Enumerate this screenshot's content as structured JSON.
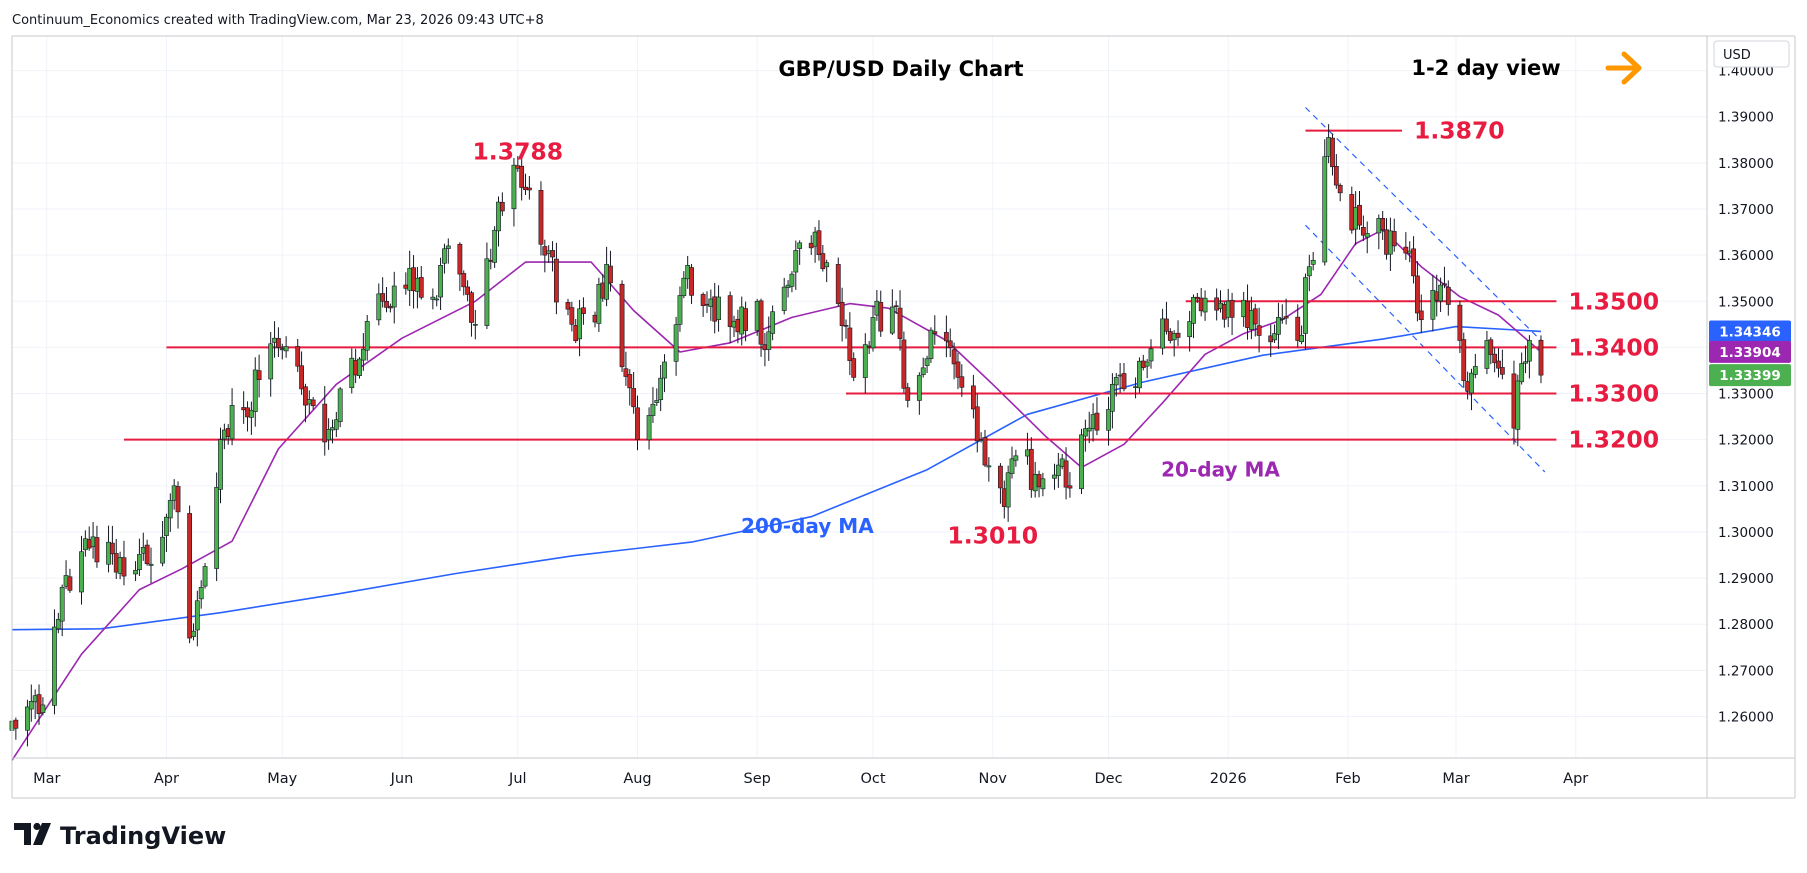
{
  "header": {
    "credit": "Continuum_Economics created with TradingView.com, Mar 23, 2026 09:43 UTC+8"
  },
  "logo": {
    "text": "TradingView"
  },
  "chart_data": {
    "type": "candlestick",
    "title": "GBP/USD Daily Chart",
    "view_label": "1-2 day view",
    "currency": "USD",
    "ylim": [
      1.251,
      1.4075
    ],
    "y_ticks": [
      "1.26000",
      "1.27000",
      "1.28000",
      "1.29000",
      "1.30000",
      "1.31000",
      "1.32000",
      "1.33000",
      "1.34000",
      "1.35000",
      "1.36000",
      "1.37000",
      "1.38000",
      "1.39000",
      "1.40000"
    ],
    "months": [
      {
        "label": "Mar",
        "date": "2025-03-01"
      },
      {
        "label": "Apr",
        "date": "2025-04-01"
      },
      {
        "label": "May",
        "date": "2025-05-01"
      },
      {
        "label": "Jun",
        "date": "2025-06-01"
      },
      {
        "label": "Jul",
        "date": "2025-07-01"
      },
      {
        "label": "Aug",
        "date": "2025-08-01"
      },
      {
        "label": "Sep",
        "date": "2025-09-01"
      },
      {
        "label": "Oct",
        "date": "2025-10-01"
      },
      {
        "label": "Nov",
        "date": "2025-11-01"
      },
      {
        "label": "Dec",
        "date": "2025-12-01"
      },
      {
        "label": "2026",
        "date": "2026-01-01"
      },
      {
        "label": "Feb",
        "date": "2026-02-01"
      },
      {
        "label": "Mar",
        "date": "2026-03-01"
      },
      {
        "label": "Apr",
        "date": "2026-04-01"
      }
    ],
    "key_prices": [
      {
        "date": "2025-02-20",
        "price": 1.259
      },
      {
        "date": "2025-02-28",
        "price": 1.2625
      },
      {
        "date": "2025-03-05",
        "price": 1.288
      },
      {
        "date": "2025-03-12",
        "price": 1.2965
      },
      {
        "date": "2025-03-20",
        "price": 1.2945
      },
      {
        "date": "2025-03-28",
        "price": 1.293
      },
      {
        "date": "2025-04-03",
        "price": 1.31
      },
      {
        "date": "2025-04-07",
        "price": 1.277
      },
      {
        "date": "2025-04-10",
        "price": 1.288
      },
      {
        "date": "2025-04-15",
        "price": 1.32
      },
      {
        "date": "2025-04-25",
        "price": 1.333
      },
      {
        "date": "2025-04-29",
        "price": 1.342
      },
      {
        "date": "2025-05-06",
        "price": 1.331
      },
      {
        "date": "2025-05-12",
        "price": 1.3195
      },
      {
        "date": "2025-05-16",
        "price": 1.331
      },
      {
        "date": "2025-05-27",
        "price": 1.35
      },
      {
        "date": "2025-06-05",
        "price": 1.355
      },
      {
        "date": "2025-06-10",
        "price": 1.3505
      },
      {
        "date": "2025-06-13",
        "price": 1.362
      },
      {
        "date": "2025-06-20",
        "price": 1.345
      },
      {
        "date": "2025-06-26",
        "price": 1.3715
      },
      {
        "date": "2025-07-01",
        "price": 1.3788
      },
      {
        "date": "2025-07-08",
        "price": 1.36
      },
      {
        "date": "2025-07-15",
        "price": 1.345
      },
      {
        "date": "2025-07-21",
        "price": 1.3455
      },
      {
        "date": "2025-07-24",
        "price": 1.358
      },
      {
        "date": "2025-08-01",
        "price": 1.32
      },
      {
        "date": "2025-08-06",
        "price": 1.3285
      },
      {
        "date": "2025-08-13",
        "price": 1.355
      },
      {
        "date": "2025-08-20",
        "price": 1.3505
      },
      {
        "date": "2025-08-25",
        "price": 1.3445
      },
      {
        "date": "2025-09-01",
        "price": 1.35
      },
      {
        "date": "2025-09-03",
        "price": 1.3395
      },
      {
        "date": "2025-09-09",
        "price": 1.3535
      },
      {
        "date": "2025-09-16",
        "price": 1.365
      },
      {
        "date": "2025-09-22",
        "price": 1.3495
      },
      {
        "date": "2025-09-26",
        "price": 1.3335
      },
      {
        "date": "2025-10-01",
        "price": 1.3465
      },
      {
        "date": "2025-10-07",
        "price": 1.349
      },
      {
        "date": "2025-10-10",
        "price": 1.3285
      },
      {
        "date": "2025-10-17",
        "price": 1.343
      },
      {
        "date": "2025-10-23",
        "price": 1.3335
      },
      {
        "date": "2025-10-30",
        "price": 1.3145
      },
      {
        "date": "2025-11-04",
        "price": 1.3055
      },
      {
        "date": "2025-11-07",
        "price": 1.3165
      },
      {
        "date": "2025-11-12",
        "price": 1.3125
      },
      {
        "date": "2025-11-18",
        "price": 1.3145
      },
      {
        "date": "2025-11-21",
        "price": 1.3095
      },
      {
        "date": "2025-11-26",
        "price": 1.3225
      },
      {
        "date": "2025-12-03",
        "price": 1.3335
      },
      {
        "date": "2025-12-08",
        "price": 1.3315
      },
      {
        "date": "2025-12-16",
        "price": 1.3435
      },
      {
        "date": "2025-12-24",
        "price": 1.3505
      },
      {
        "date": "2026-01-02",
        "price": 1.3465
      },
      {
        "date": "2026-01-07",
        "price": 1.348
      },
      {
        "date": "2026-01-13",
        "price": 1.343
      },
      {
        "date": "2026-01-19",
        "price": 1.3415
      },
      {
        "date": "2026-01-22",
        "price": 1.3575
      },
      {
        "date": "2026-01-27",
        "price": 1.3855
      },
      {
        "date": "2026-01-30",
        "price": 1.3735
      },
      {
        "date": "2026-02-04",
        "price": 1.3665
      },
      {
        "date": "2026-02-10",
        "price": 1.3655
      },
      {
        "date": "2026-02-13",
        "price": 1.362
      },
      {
        "date": "2026-02-18",
        "price": 1.3555
      },
      {
        "date": "2026-02-20",
        "price": 1.346
      },
      {
        "date": "2026-02-25",
        "price": 1.3535
      },
      {
        "date": "2026-03-02",
        "price": 1.3415
      },
      {
        "date": "2026-03-04",
        "price": 1.3305
      },
      {
        "date": "2026-03-09",
        "price": 1.3415
      },
      {
        "date": "2026-03-12",
        "price": 1.3355
      },
      {
        "date": "2026-03-16",
        "price": 1.3225
      },
      {
        "date": "2026-03-18",
        "price": 1.3365
      },
      {
        "date": "2026-03-20",
        "price": 1.3415
      },
      {
        "date": "2026-03-23",
        "price": 1.33399
      }
    ],
    "ma20_points": [
      {
        "date": "2025-02-20",
        "price": 1.2505
      },
      {
        "date": "2025-03-10",
        "price": 1.2735
      },
      {
        "date": "2025-03-25",
        "price": 1.2875
      },
      {
        "date": "2025-04-05",
        "price": 1.292
      },
      {
        "date": "2025-04-18",
        "price": 1.298
      },
      {
        "date": "2025-04-30",
        "price": 1.318
      },
      {
        "date": "2025-05-15",
        "price": 1.332
      },
      {
        "date": "2025-06-01",
        "price": 1.342
      },
      {
        "date": "2025-06-20",
        "price": 1.35
      },
      {
        "date": "2025-07-03",
        "price": 1.3585
      },
      {
        "date": "2025-07-20",
        "price": 1.3585
      },
      {
        "date": "2025-07-31",
        "price": 1.348
      },
      {
        "date": "2025-08-12",
        "price": 1.339
      },
      {
        "date": "2025-08-25",
        "price": 1.341
      },
      {
        "date": "2025-09-10",
        "price": 1.3465
      },
      {
        "date": "2025-09-25",
        "price": 1.3495
      },
      {
        "date": "2025-10-05",
        "price": 1.3485
      },
      {
        "date": "2025-10-20",
        "price": 1.3415
      },
      {
        "date": "2025-11-01",
        "price": 1.332
      },
      {
        "date": "2025-11-15",
        "price": 1.3205
      },
      {
        "date": "2025-11-24",
        "price": 1.314
      },
      {
        "date": "2025-12-05",
        "price": 1.319
      },
      {
        "date": "2025-12-15",
        "price": 1.328
      },
      {
        "date": "2025-12-26",
        "price": 1.3385
      },
      {
        "date": "2026-01-05",
        "price": 1.343
      },
      {
        "date": "2026-01-15",
        "price": 1.346
      },
      {
        "date": "2026-01-25",
        "price": 1.3515
      },
      {
        "date": "2026-02-03",
        "price": 1.3625
      },
      {
        "date": "2026-02-10",
        "price": 1.3655
      },
      {
        "date": "2026-02-20",
        "price": 1.3575
      },
      {
        "date": "2026-03-02",
        "price": 1.351
      },
      {
        "date": "2026-03-12",
        "price": 1.347
      },
      {
        "date": "2026-03-23",
        "price": 1.339
      }
    ],
    "ma200_points": [
      {
        "date": "2025-02-20",
        "price": 1.2788
      },
      {
        "date": "2025-03-15",
        "price": 1.279
      },
      {
        "date": "2025-04-15",
        "price": 1.2825
      },
      {
        "date": "2025-05-15",
        "price": 1.2865
      },
      {
        "date": "2025-06-15",
        "price": 1.291
      },
      {
        "date": "2025-07-15",
        "price": 1.2948
      },
      {
        "date": "2025-08-15",
        "price": 1.2978
      },
      {
        "date": "2025-09-15",
        "price": 1.3033
      },
      {
        "date": "2025-10-15",
        "price": 1.3135
      },
      {
        "date": "2025-11-10",
        "price": 1.3255
      },
      {
        "date": "2025-12-10",
        "price": 1.3325
      },
      {
        "date": "2026-01-10",
        "price": 1.3383
      },
      {
        "date": "2026-02-10",
        "price": 1.3418
      },
      {
        "date": "2026-03-01",
        "price": 1.3445
      },
      {
        "date": "2026-03-23",
        "price": 1.34346
      }
    ],
    "levels": [
      {
        "price": 1.387,
        "label": "1.3870",
        "from": "2026-01-21",
        "to": "2026-02-15"
      },
      {
        "price": 1.35,
        "label": "1.3500",
        "from": "2025-12-21",
        "to": "2026-03-27"
      },
      {
        "price": 1.34,
        "label": "1.3400",
        "from": "2025-04-01",
        "to": "2026-03-27"
      },
      {
        "price": 1.33,
        "label": "1.3300",
        "from": "2025-09-24",
        "to": "2026-03-27"
      },
      {
        "price": 1.32,
        "label": "1.3200",
        "from": "2025-03-21",
        "to": "2026-03-27"
      }
    ],
    "annotations": [
      {
        "text": "1.3788",
        "date": "2025-07-01",
        "price": 1.3807
      },
      {
        "text": "1.3010",
        "date": "2025-11-01",
        "price": 1.2975
      },
      {
        "text": "200-day MA",
        "date": "2025-09-14",
        "price": 1.2998
      },
      {
        "text": "20-day MA",
        "date": "2025-12-30",
        "price": 1.312
      }
    ],
    "channel": {
      "upper": [
        {
          "date": "2026-01-21",
          "price": 1.392
        },
        {
          "date": "2026-03-23",
          "price": 1.3415
        }
      ],
      "lower": [
        {
          "date": "2026-01-21",
          "price": 1.3665
        },
        {
          "date": "2026-03-24",
          "price": 1.313
        }
      ]
    },
    "price_tags": [
      {
        "label": "1.34346",
        "price": 1.34346,
        "color": "#2962ff"
      },
      {
        "label": "1.33904",
        "price": 1.33904,
        "color": "#9c27b0"
      },
      {
        "label": "1.33399",
        "price": 1.33399,
        "color": "#4caf50"
      }
    ],
    "colors": {
      "up_candle": "#4caf50",
      "down_candle": "#c62828",
      "ma20": "#9c27b0",
      "ma200": "#2962ff",
      "levels": "#e81b40",
      "channel": "#2962ff",
      "arrow": "#ff9800",
      "ma200_label": "#2962ff",
      "ma20_label": "#9c27b0"
    },
    "grid": true,
    "legend": "none",
    "arrow_icon": "right-arrow-icon"
  }
}
